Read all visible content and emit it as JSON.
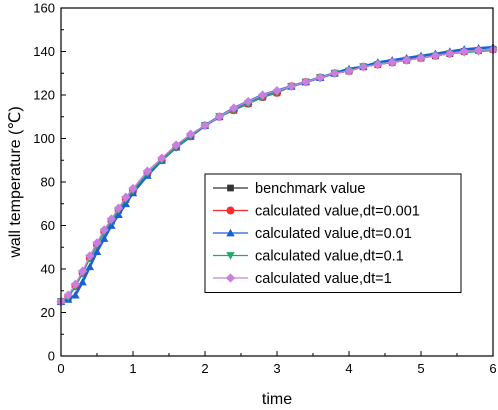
{
  "chart_data": {
    "type": "line",
    "title": "",
    "xlabel": "time",
    "ylabel": "wall temperature (℃)",
    "xlim": [
      0,
      6
    ],
    "ylim": [
      0,
      160
    ],
    "xticks": [
      "0",
      "1",
      "2",
      "3",
      "4",
      "5",
      "6"
    ],
    "yticks": [
      "0",
      "20",
      "40",
      "60",
      "80",
      "100",
      "120",
      "140",
      "160"
    ],
    "grid": false,
    "legend_position": "center-right",
    "series": [
      {
        "name": "benchmark value",
        "marker": "square",
        "color": "#333333",
        "x": [
          0,
          0.1,
          0.2,
          0.3,
          0.4,
          0.5,
          0.6,
          0.7,
          0.8,
          0.9,
          1.0,
          1.2,
          1.4,
          1.6,
          1.8,
          2.0,
          2.2,
          2.4,
          2.6,
          2.8,
          3.0,
          3.2,
          3.4,
          3.6,
          3.8,
          4.0,
          4.2,
          4.4,
          4.6,
          4.8,
          5.0,
          5.2,
          5.4,
          5.6,
          5.8,
          6.0
        ],
        "y": [
          25,
          27,
          32,
          38,
          45,
          51,
          57,
          62,
          67,
          72,
          76,
          84,
          90,
          96,
          101,
          106,
          110,
          113,
          116,
          119,
          121,
          124,
          126,
          128,
          130,
          131,
          133,
          134,
          135,
          136,
          137,
          138,
          139,
          140,
          140.5,
          141
        ]
      },
      {
        "name": "calculated value,dt=0.001",
        "marker": "circle",
        "color": "#ff2a2a",
        "x": [
          0,
          0.1,
          0.2,
          0.3,
          0.4,
          0.5,
          0.6,
          0.7,
          0.8,
          0.9,
          1.0,
          1.2,
          1.4,
          1.6,
          1.8,
          2.0,
          2.2,
          2.4,
          2.6,
          2.8,
          3.0,
          3.2,
          3.4,
          3.6,
          3.8,
          4.0,
          4.2,
          4.4,
          4.6,
          4.8,
          5.0,
          5.2,
          5.4,
          5.6,
          5.8,
          6.0
        ],
        "y": [
          25,
          27,
          32,
          38,
          45,
          51,
          57,
          62,
          67,
          72,
          76,
          84,
          90,
          96,
          101,
          106,
          110,
          113,
          116,
          119,
          121,
          124,
          126,
          128,
          130,
          131,
          133,
          134,
          135,
          136,
          137,
          138,
          139,
          140,
          140.5,
          141
        ]
      },
      {
        "name": "calculated value,dt=0.01",
        "marker": "triangle-up",
        "color": "#1a5fd6",
        "x": [
          0,
          0.1,
          0.2,
          0.3,
          0.4,
          0.5,
          0.6,
          0.7,
          0.8,
          0.9,
          1.0,
          1.2,
          1.4,
          1.6,
          1.8,
          2.0,
          2.2,
          2.4,
          2.6,
          2.8,
          3.0,
          3.2,
          3.4,
          3.6,
          3.8,
          4.0,
          4.2,
          4.4,
          4.6,
          4.8,
          5.0,
          5.2,
          5.4,
          5.6,
          5.8,
          6.0
        ],
        "y": [
          25,
          26,
          28,
          34,
          41,
          48,
          54,
          60,
          65,
          70,
          75,
          83,
          90,
          96,
          101,
          106,
          110,
          114,
          117,
          120,
          122,
          124,
          126,
          128,
          130,
          132,
          133,
          135,
          136,
          137,
          138,
          139,
          140,
          141,
          141.5,
          142
        ]
      },
      {
        "name": "calculated value,dt=0.1",
        "marker": "triangle-down",
        "color": "#1faa6a",
        "x": [
          0,
          0.1,
          0.2,
          0.3,
          0.4,
          0.5,
          0.6,
          0.7,
          0.8,
          0.9,
          1.0,
          1.2,
          1.4,
          1.6,
          1.8,
          2.0,
          2.2,
          2.4,
          2.6,
          2.8,
          3.0,
          3.2,
          3.4,
          3.6,
          3.8,
          4.0,
          4.2,
          4.4,
          4.6,
          4.8,
          5.0,
          5.2,
          5.4,
          5.6,
          5.8,
          6.0
        ],
        "y": [
          25,
          27,
          32,
          38,
          45,
          51,
          57,
          62,
          67,
          72,
          76,
          84,
          90,
          96,
          101,
          106,
          110,
          113,
          116,
          119,
          121,
          124,
          126,
          128,
          130,
          131,
          133,
          134,
          135,
          136,
          137,
          138,
          139,
          139.5,
          140,
          140.5
        ]
      },
      {
        "name": "calculated value,dt=1",
        "marker": "diamond",
        "color": "#c97fe0",
        "x": [
          0,
          0.1,
          0.2,
          0.3,
          0.4,
          0.5,
          0.6,
          0.7,
          0.8,
          0.9,
          1.0,
          1.2,
          1.4,
          1.6,
          1.8,
          2.0,
          2.2,
          2.4,
          2.6,
          2.8,
          3.0,
          3.2,
          3.4,
          3.6,
          3.8,
          4.0,
          4.2,
          4.4,
          4.6,
          4.8,
          5.0,
          5.2,
          5.4,
          5.6,
          5.8,
          6.0
        ],
        "y": [
          25,
          28,
          33,
          39,
          46,
          52,
          58,
          63,
          68,
          73,
          77,
          85,
          91,
          97,
          102,
          106,
          110,
          114,
          117,
          120,
          122,
          124,
          126,
          128,
          130,
          131,
          133,
          134,
          135,
          136,
          137,
          138,
          139,
          140,
          140.5,
          141
        ]
      }
    ]
  }
}
